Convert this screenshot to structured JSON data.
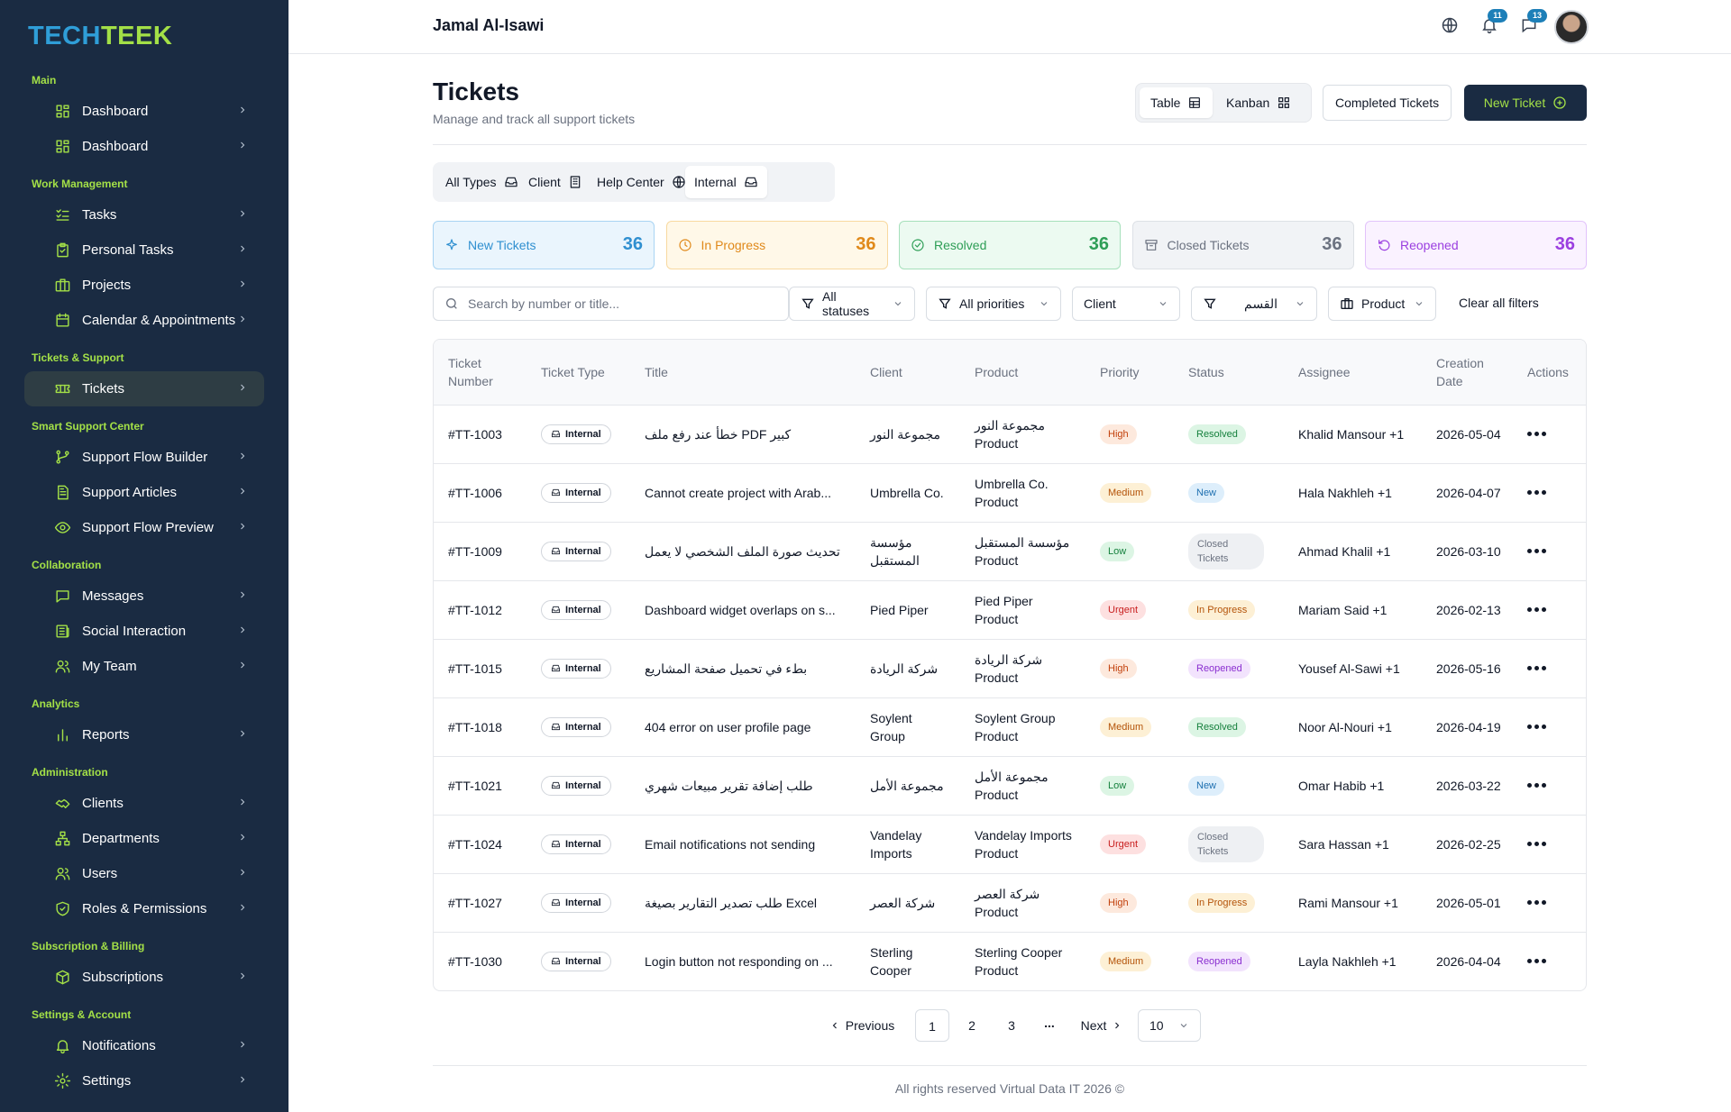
{
  "brand": {
    "logo_part1": "TECH",
    "logo_part2": "TEEK"
  },
  "colors": {
    "sidebar_bg": "#1a2b42",
    "accent_lime": "#a3e047",
    "accent_blue": "#2f9ed8",
    "badge_blue": "#1d7fb8"
  },
  "sidebar": {
    "groups": [
      {
        "title": "Main",
        "items": [
          {
            "label": "Dashboard",
            "icon": "dashboard-grid-icon"
          },
          {
            "label": "Dashboard",
            "icon": "dashboard-grid-icon"
          }
        ]
      },
      {
        "title": "Work Management",
        "items": [
          {
            "label": "Tasks",
            "icon": "checklist-icon"
          },
          {
            "label": "Personal Tasks",
            "icon": "clipboard-check-icon"
          },
          {
            "label": "Projects",
            "icon": "briefcase-icon"
          },
          {
            "label": "Calendar & Appointments",
            "icon": "calendar-icon"
          }
        ]
      },
      {
        "title": "Tickets & Support",
        "items": [
          {
            "label": "Tickets",
            "icon": "ticket-icon",
            "active": true
          }
        ]
      },
      {
        "title": "Smart Support Center",
        "items": [
          {
            "label": "Support Flow Builder",
            "icon": "flow-icon"
          },
          {
            "label": "Support Articles",
            "icon": "document-icon"
          },
          {
            "label": "Support Flow Preview",
            "icon": "eye-icon"
          }
        ]
      },
      {
        "title": "Collaboration",
        "items": [
          {
            "label": "Messages",
            "icon": "message-icon"
          },
          {
            "label": "Social Interaction",
            "icon": "newspaper-icon"
          },
          {
            "label": "My Team",
            "icon": "users-icon"
          }
        ]
      },
      {
        "title": "Analytics",
        "items": [
          {
            "label": "Reports",
            "icon": "bar-chart-icon"
          }
        ]
      },
      {
        "title": "Administration",
        "items": [
          {
            "label": "Clients",
            "icon": "handshake-icon"
          },
          {
            "label": "Departments",
            "icon": "org-chart-icon"
          },
          {
            "label": "Users",
            "icon": "users-icon"
          },
          {
            "label": "Roles & Permissions",
            "icon": "shield-check-icon"
          }
        ]
      },
      {
        "title": "Subscription & Billing",
        "items": [
          {
            "label": "Subscriptions",
            "icon": "box-icon"
          }
        ]
      },
      {
        "title": "Settings & Account",
        "items": [
          {
            "label": "Notifications",
            "icon": "bell-icon"
          },
          {
            "label": "Settings",
            "icon": "gear-icon"
          }
        ]
      }
    ]
  },
  "topbar": {
    "user_name": "Jamal Al-Isawi",
    "notifications_count": "11",
    "messages_count": "13"
  },
  "header": {
    "title": "Tickets",
    "subtitle": "Manage and track all support tickets",
    "view_table": "Table",
    "view_kanban": "Kanban",
    "completed_button": "Completed Tickets",
    "new_ticket_button": "New Ticket"
  },
  "type_tabs": [
    {
      "label": "All Types",
      "icon": "inbox-icon"
    },
    {
      "label": "Client",
      "icon": "building-icon"
    },
    {
      "label": "Help Center",
      "icon": "globe-icon"
    },
    {
      "label": "Internal",
      "icon": "inbox-icon",
      "active": true
    }
  ],
  "stats": [
    {
      "label": "New Tickets",
      "value": "36",
      "icon": "sparkle-icon",
      "color": "#2f8fd0",
      "bg": "#eaf5fd",
      "border": "#a9d4f3"
    },
    {
      "label": "In Progress",
      "value": "36",
      "icon": "clock-icon",
      "color": "#e0891a",
      "bg": "#fff8e8",
      "border": "#f8d9a0"
    },
    {
      "label": "Resolved",
      "value": "36",
      "icon": "check-circle-icon",
      "color": "#2e9e56",
      "bg": "#ecfaf1",
      "border": "#a6e0bb"
    },
    {
      "label": "Closed Tickets",
      "value": "36",
      "icon": "archive-icon",
      "color": "#6b7280",
      "bg": "#f1f3f6",
      "border": "#dde1e6"
    },
    {
      "label": "Reopened",
      "value": "36",
      "icon": "rotate-ccw-icon",
      "color": "#9b3fe0",
      "bg": "#faf2ff",
      "border": "#e2c3fb"
    }
  ],
  "filters": {
    "search_placeholder": "Search by number or title...",
    "status": "All statuses",
    "priority": "All priorities",
    "client": "Client",
    "department": "القسم",
    "product": "Product",
    "clear": "Clear all filters"
  },
  "table": {
    "columns": [
      "Ticket Number",
      "Ticket Type",
      "Title",
      "Client",
      "Product",
      "Priority",
      "Status",
      "Assignee",
      "Creation Date",
      "Actions"
    ],
    "rows": [
      {
        "number": "#TT-1003",
        "type": "Internal",
        "title": "خطأ عند رفع ملف PDF كبير",
        "client": "مجموعة النور",
        "product": "مجموعة النور Product",
        "priority": "High",
        "status": "Resolved",
        "assignee": "Khalid Mansour +1",
        "date": "2026-05-04"
      },
      {
        "number": "#TT-1006",
        "type": "Internal",
        "title": "Cannot create project with Arab...",
        "client": "Umbrella Co.",
        "product": "Umbrella Co. Product",
        "priority": "Medium",
        "status": "New",
        "assignee": "Hala Nakhleh +1",
        "date": "2026-04-07"
      },
      {
        "number": "#TT-1009",
        "type": "Internal",
        "title": "تحديث صورة الملف الشخصي لا يعمل",
        "client": "مؤسسة المستقبل",
        "product": "مؤسسة المستقبل Product",
        "priority": "Low",
        "status": "Closed Tickets",
        "assignee": "Ahmad Khalil +1",
        "date": "2026-03-10"
      },
      {
        "number": "#TT-1012",
        "type": "Internal",
        "title": "Dashboard widget overlaps on s...",
        "client": "Pied Piper",
        "product": "Pied Piper Product",
        "priority": "Urgent",
        "status": "In Progress",
        "assignee": "Mariam Said +1",
        "date": "2026-02-13"
      },
      {
        "number": "#TT-1015",
        "type": "Internal",
        "title": "بطء في تحميل صفحة المشاريع",
        "client": "شركة الريادة",
        "product": "شركة الريادة Product",
        "priority": "High",
        "status": "Reopened",
        "assignee": "Yousef Al-Sawi +1",
        "date": "2026-05-16"
      },
      {
        "number": "#TT-1018",
        "type": "Internal",
        "title": "404 error on user profile page",
        "client": "Soylent Group",
        "product": "Soylent Group Product",
        "priority": "Medium",
        "status": "Resolved",
        "assignee": "Noor Al-Nouri +1",
        "date": "2026-04-19"
      },
      {
        "number": "#TT-1021",
        "type": "Internal",
        "title": "طلب إضافة تقرير مبيعات شهري",
        "client": "مجموعة الأمل",
        "product": "مجموعة الأمل Product",
        "priority": "Low",
        "status": "New",
        "assignee": "Omar Habib +1",
        "date": "2026-03-22"
      },
      {
        "number": "#TT-1024",
        "type": "Internal",
        "title": "Email notifications not sending",
        "client": "Vandelay Imports",
        "product": "Vandelay Imports Product",
        "priority": "Urgent",
        "status": "Closed Tickets",
        "assignee": "Sara Hassan +1",
        "date": "2026-02-25"
      },
      {
        "number": "#TT-1027",
        "type": "Internal",
        "title": "طلب تصدير التقارير بصيغة Excel",
        "client": "شركة العصر",
        "product": "شركة العصر Product",
        "priority": "High",
        "status": "In Progress",
        "assignee": "Rami Mansour +1",
        "date": "2026-05-01"
      },
      {
        "number": "#TT-1030",
        "type": "Internal",
        "title": "Login button not responding on ...",
        "client": "Sterling Cooper",
        "product": "Sterling Cooper Product",
        "priority": "Medium",
        "status": "Reopened",
        "assignee": "Layla Nakhleh +1",
        "date": "2026-04-04"
      }
    ]
  },
  "priority_colors": {
    "High": {
      "bg": "#fde9dd",
      "fg": "#c2410c"
    },
    "Medium": {
      "bg": "#fdf0d5",
      "fg": "#b45309"
    },
    "Low": {
      "bg": "#dcf5e4",
      "fg": "#15803d"
    },
    "Urgent": {
      "bg": "#fde0e0",
      "fg": "#c81e1e"
    }
  },
  "status_colors": {
    "Resolved": {
      "bg": "#dcf5e4",
      "fg": "#15803d"
    },
    "New": {
      "bg": "#ddeefb",
      "fg": "#1d6fb0"
    },
    "Closed Tickets": {
      "bg": "#eef0f3",
      "fg": "#6b7280"
    },
    "In Progress": {
      "bg": "#fdf0d5",
      "fg": "#b45309"
    },
    "Reopened": {
      "bg": "#f2e3fd",
      "fg": "#8a2fd0"
    }
  },
  "pagination": {
    "previous": "Previous",
    "pages": [
      "1",
      "2",
      "3"
    ],
    "ellipsis": "...",
    "next": "Next",
    "page_size": "10",
    "current": "1"
  },
  "footer": {
    "text": "All rights reserved Virtual Data IT 2026 ©"
  }
}
